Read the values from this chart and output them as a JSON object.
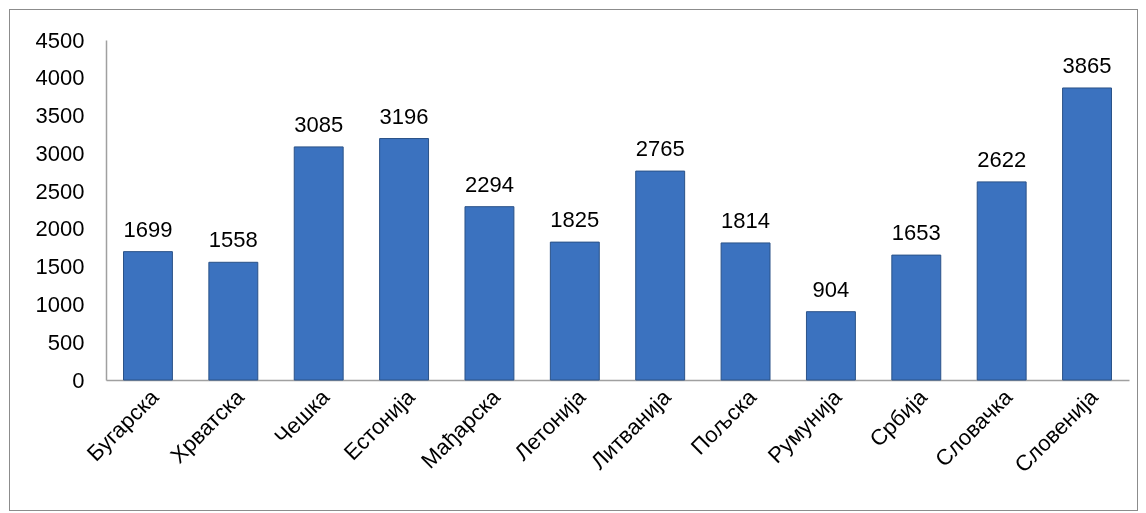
{
  "chart_data": {
    "type": "bar",
    "categories": [
      "Бугарска",
      "Хрватска",
      "Чешка",
      "Естонија",
      "Мађарска",
      "Летонија",
      "Литванија",
      "Пољска",
      "Румунија",
      "Србија",
      "Словачка",
      "Словенија"
    ],
    "values": [
      1699,
      1558,
      3085,
      3196,
      2294,
      1825,
      2765,
      1814,
      904,
      1653,
      2622,
      3865
    ],
    "color": "#3b72bf",
    "ylim": [
      0,
      4500
    ],
    "yticks": [
      0,
      500,
      1000,
      1500,
      2000,
      2500,
      3000,
      3500,
      4000,
      4500
    ],
    "data_labels": true
  }
}
